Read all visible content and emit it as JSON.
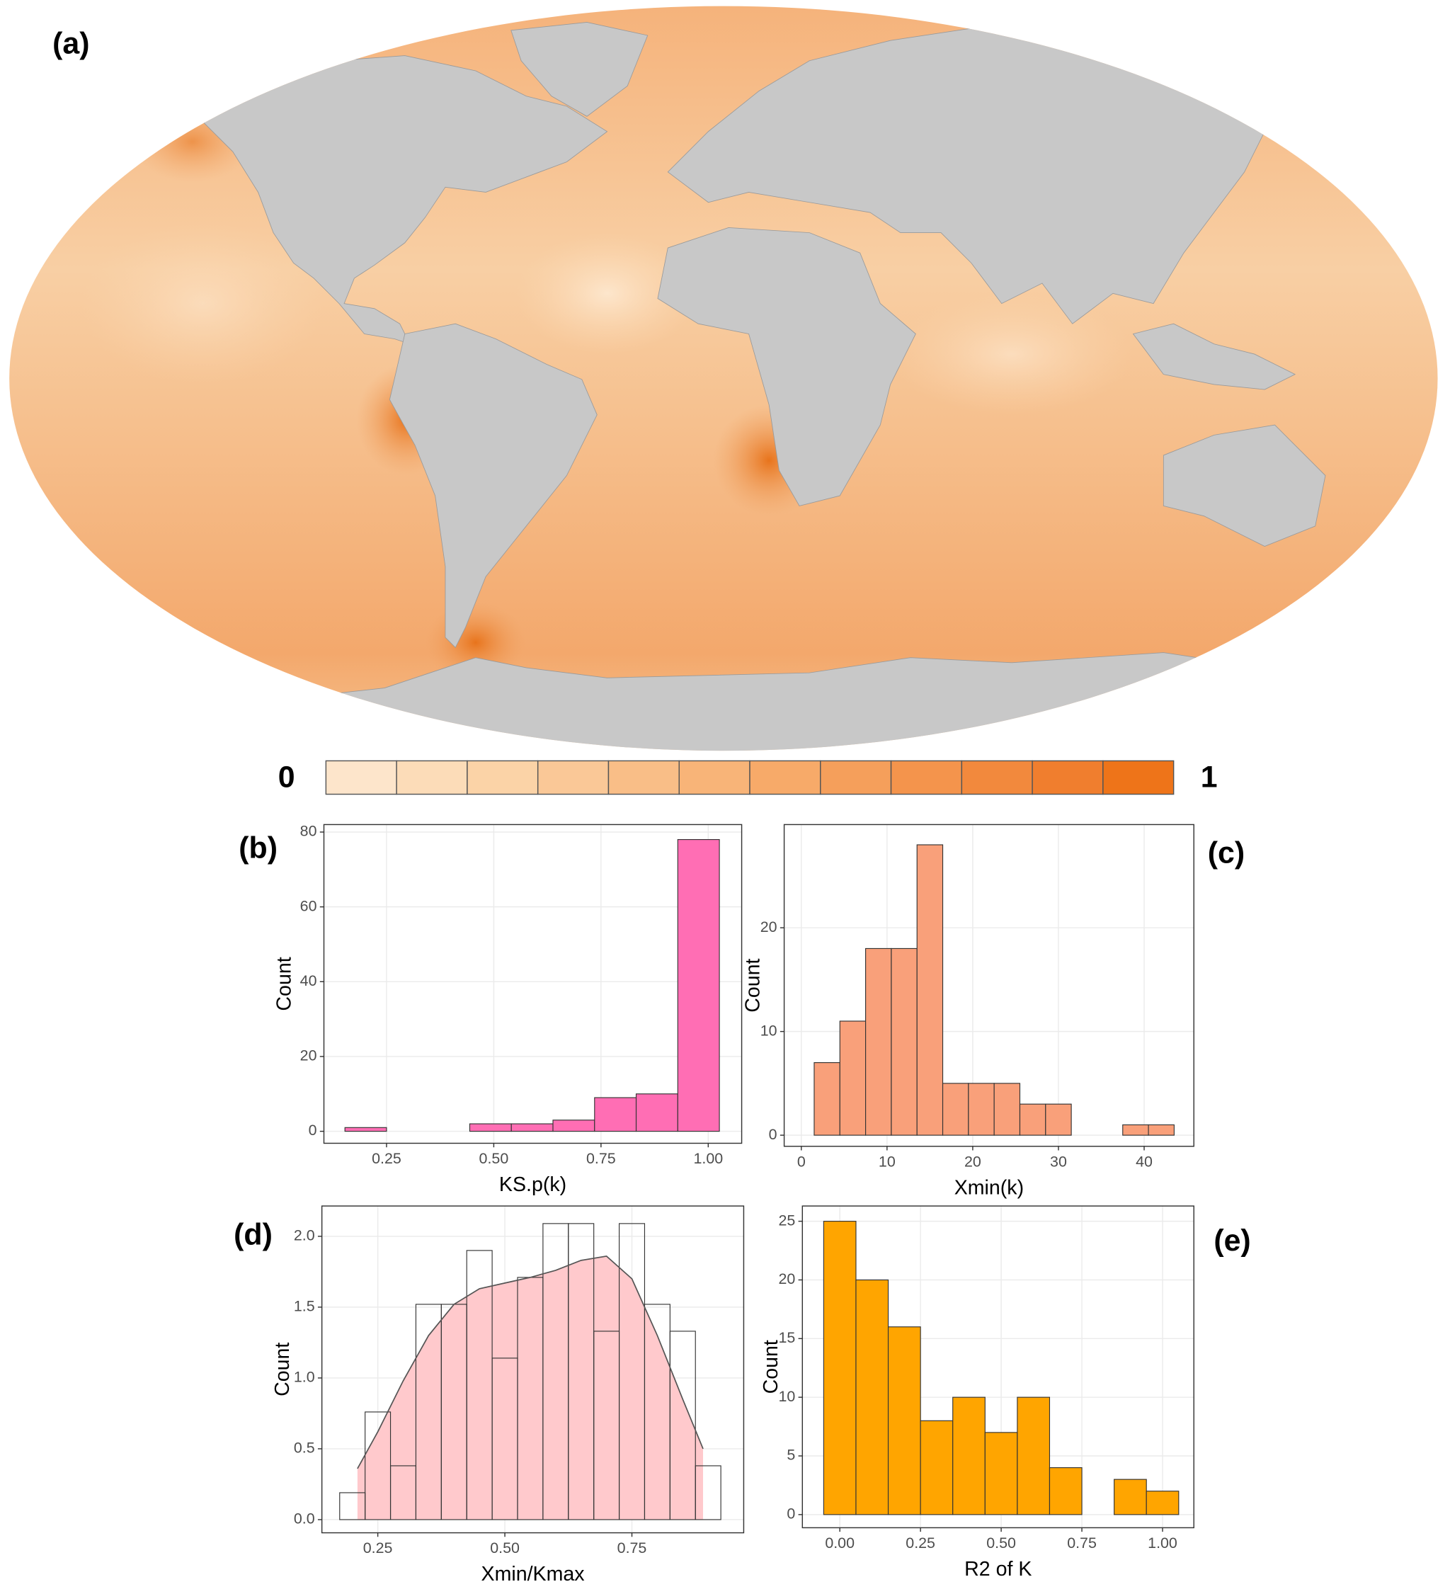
{
  "panel_labels": [
    "(a)",
    "(b)",
    "(c)",
    "(d)",
    "(e)"
  ],
  "map": {
    "colorbar": {
      "min": 0,
      "max": 1,
      "colors": [
        "#fde5cb",
        "#fcdcb8",
        "#fbd3a7",
        "#fac897",
        "#f9be87",
        "#f8b478",
        "#f7aa69",
        "#f59f5b",
        "#f4944c",
        "#f2893d",
        "#f07e2e",
        "#ee7419"
      ]
    }
  },
  "chart_data": [
    {
      "type": "histogram",
      "xlabel": "KS.p(k)",
      "ylabel": "Count",
      "color": "#ff6eb4",
      "edge": "#333333",
      "grid": true,
      "bins": [
        0.153,
        0.25,
        0.347,
        0.444,
        0.541,
        0.638,
        0.735,
        0.832,
        0.929,
        1.026
      ],
      "counts": [
        1,
        0,
        0,
        2,
        2,
        3,
        9,
        10,
        78
      ],
      "xlim": [
        0.104,
        1.078
      ],
      "ylim": [
        -3.2,
        82
      ],
      "xticks": [
        0.25,
        {
          "value": 0.5,
          "label": "0.50"
        },
        0.75,
        {
          "value": 1,
          "label": "1.00"
        }
      ],
      "yticks": [
        0,
        20,
        40,
        60,
        80
      ]
    },
    {
      "type": "histogram",
      "xlabel": "Xmin(k)",
      "ylabel": "Count",
      "color": "#f9a07a",
      "edge": "#333333",
      "grid": true,
      "bins": [
        1.5,
        4.5,
        7.5,
        10.5,
        13.5,
        16.5,
        19.5,
        22.5,
        25.5,
        28.5,
        31.5,
        34.5,
        37.5,
        40.5,
        43.5
      ],
      "counts": [
        7,
        11,
        18,
        18,
        28,
        5,
        5,
        5,
        3,
        3,
        0,
        0,
        1,
        1
      ],
      "xlim": [
        -2,
        45.8
      ],
      "ylim": [
        -1.07,
        29.95
      ],
      "xticks": [
        0,
        10,
        20,
        30,
        40
      ],
      "yticks": [
        0,
        10,
        20
      ]
    },
    {
      "type": "histogram",
      "xlabel": "Xmin/Kmax",
      "ylabel": "Count",
      "color": "none",
      "edge": "#333333",
      "grid": true,
      "bins": [
        0.175,
        0.225,
        0.275,
        0.325,
        0.375,
        0.425,
        0.475,
        0.525,
        0.575,
        0.625,
        0.675,
        0.725,
        0.775,
        0.825,
        0.875,
        0.925
      ],
      "counts": [
        0.19,
        0.76,
        0.38,
        1.52,
        1.52,
        1.9,
        1.14,
        1.71,
        2.09,
        2.09,
        1.33,
        2.09,
        1.52,
        1.33,
        0.38
      ],
      "density": {
        "color": "#ffc9cc",
        "x": [
          0.21,
          0.25,
          0.3,
          0.35,
          0.4,
          0.45,
          0.5,
          0.55,
          0.6,
          0.65,
          0.7,
          0.75,
          0.8,
          0.85,
          0.89
        ],
        "y": [
          0.36,
          0.62,
          0.98,
          1.3,
          1.52,
          1.63,
          1.67,
          1.71,
          1.76,
          1.83,
          1.86,
          1.7,
          1.3,
          0.85,
          0.5
        ]
      },
      "xlim": [
        0.14,
        0.97
      ],
      "ylim": [
        -0.093,
        2.214
      ],
      "xticks": [
        0.25,
        {
          "value": 0.5,
          "label": "0.50"
        },
        0.75
      ],
      "yticks": [
        {
          "value": 0,
          "label": "0.0"
        },
        0.5,
        {
          "value": 1,
          "label": "1.0"
        },
        1.5,
        {
          "value": 2,
          "label": "2.0"
        }
      ]
    },
    {
      "type": "histogram",
      "xlabel": "R2 of K",
      "ylabel": "Count",
      "color": "#ffa500",
      "edge": "#333333",
      "grid": true,
      "bins": [
        -0.05,
        0.05,
        0.15,
        0.25,
        0.35,
        0.45,
        0.55,
        0.65,
        0.75,
        0.85,
        0.95,
        1.05
      ],
      "counts": [
        25,
        20,
        16,
        8,
        10,
        7,
        10,
        4,
        0,
        3,
        2
      ],
      "xlim": [
        -0.116,
        1.097
      ],
      "ylim": [
        -1.12,
        26.3
      ],
      "xticks": [
        {
          "value": 0,
          "label": "0.00"
        },
        0.25,
        {
          "value": 0.5,
          "label": "0.50"
        },
        0.75,
        {
          "value": 1,
          "label": "1.00"
        }
      ],
      "yticks": [
        0,
        5,
        10,
        15,
        20,
        25
      ]
    }
  ]
}
